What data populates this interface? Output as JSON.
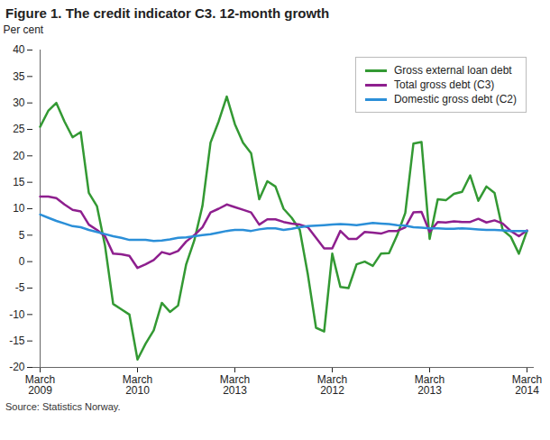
{
  "chart_data": {
    "type": "line",
    "title": "Figure 1. The credit indicator C3. 12-month growth",
    "y_label": "Per cent",
    "caption": "Source: Statistics Norway.",
    "categories": [
      "March\n2009",
      null,
      null,
      null,
      null,
      null,
      null,
      null,
      null,
      null,
      null,
      null,
      "March\n2010",
      null,
      null,
      null,
      null,
      null,
      null,
      null,
      null,
      null,
      null,
      null,
      "March\n2013",
      null,
      null,
      null,
      null,
      null,
      null,
      null,
      null,
      null,
      null,
      null,
      "March\n2012",
      null,
      null,
      null,
      null,
      null,
      null,
      null,
      null,
      null,
      null,
      null,
      "March\n2013",
      null,
      null,
      null,
      null,
      null,
      null,
      null,
      null,
      null,
      null,
      null,
      "March\n2014"
    ],
    "series": [
      {
        "name": "Gross external loan debt",
        "color": "#339933",
        "values": [
          25.5,
          28.5,
          30,
          26.5,
          23.5,
          24.5,
          13,
          10.5,
          3,
          -8,
          -9,
          -10,
          -18.5,
          -15.5,
          -13,
          -7.8,
          -9.5,
          -8.3,
          -0.5,
          4,
          10.5,
          22.5,
          26.5,
          31.2,
          26,
          22.5,
          20.5,
          11.8,
          15.2,
          14.2,
          10,
          8.3,
          6,
          -2.5,
          -12.5,
          -13.2,
          1.5,
          -4.8,
          -5,
          -0.5,
          0,
          -0.8,
          1.5,
          1.6,
          5,
          9.2,
          22.3,
          22.6,
          4.3,
          11.8,
          11.6,
          12.8,
          13.2,
          16.3,
          11.5,
          14.2,
          13,
          6,
          4.7,
          1.5,
          5.8
        ]
      },
      {
        "name": "Total gross debt (C3)",
        "color": "#8e1f8e",
        "values": [
          12.3,
          12.3,
          12,
          10.8,
          9.8,
          9.5,
          7,
          6,
          4.8,
          1.5,
          1.4,
          1.1,
          -1.2,
          -0.5,
          0.3,
          1.8,
          1.4,
          2,
          3.8,
          5,
          6.5,
          9.3,
          10,
          10.8,
          10.3,
          9.8,
          9.3,
          7,
          8,
          8,
          7.5,
          7.2,
          7,
          6.5,
          4.5,
          2.5,
          2.5,
          5.8,
          4.3,
          4.3,
          5.6,
          5.5,
          5.3,
          5.8,
          5.8,
          6.5,
          9.3,
          9.4,
          5.6,
          7.5,
          7.4,
          7.6,
          7.5,
          7.5,
          8.1,
          7.4,
          7.8,
          7.2,
          5.8,
          4.8,
          5.9
        ]
      },
      {
        "name": "Domestic gross debt (C2)",
        "color": "#2b8fd8",
        "values": [
          8.9,
          8.3,
          7.7,
          7.2,
          6.7,
          6.5,
          6.0,
          5.6,
          5.2,
          4.8,
          4.5,
          4.1,
          4.1,
          4.1,
          3.9,
          4.0,
          4.2,
          4.5,
          4.6,
          4.8,
          5.0,
          5.2,
          5.5,
          5.8,
          6.0,
          6.0,
          5.8,
          6.1,
          6.3,
          6.3,
          6.0,
          6.2,
          6.5,
          6.7,
          6.8,
          6.9,
          7.0,
          7.1,
          7.0,
          6.9,
          7.1,
          7.3,
          7.2,
          7.1,
          6.9,
          6.8,
          6.5,
          6.4,
          6.3,
          6.3,
          6.2,
          6.2,
          6.3,
          6.2,
          6.1,
          6.0,
          6.0,
          5.9,
          5.8,
          5.8,
          5.8
        ]
      }
    ],
    "ylim": [
      -20,
      40
    ],
    "yticks": [
      -20,
      -15,
      -10,
      -5,
      0,
      5,
      10,
      15,
      20,
      25,
      30,
      35,
      40
    ],
    "grid": false,
    "legend": "top-right"
  }
}
